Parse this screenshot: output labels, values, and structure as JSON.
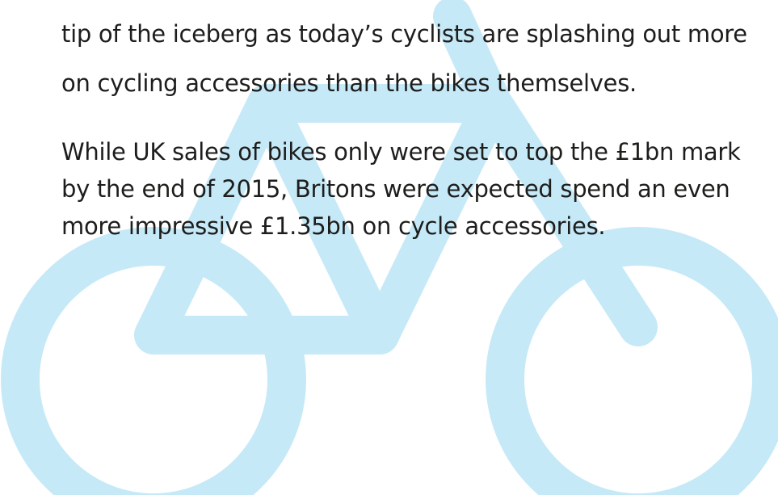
{
  "paragraphs": [
    {
      "lines": [
        "tip of the iceberg as today’s cyclists are splashing out more",
        "on cycling accessories than the bikes themselves."
      ]
    },
    {
      "lines": [
        "While UK sales of bikes only were set to top the £1bn mark",
        "by the end of 2015, Britons were expected spend an even",
        "more impressive £1.35bn on cycle accessories."
      ]
    }
  ]
}
